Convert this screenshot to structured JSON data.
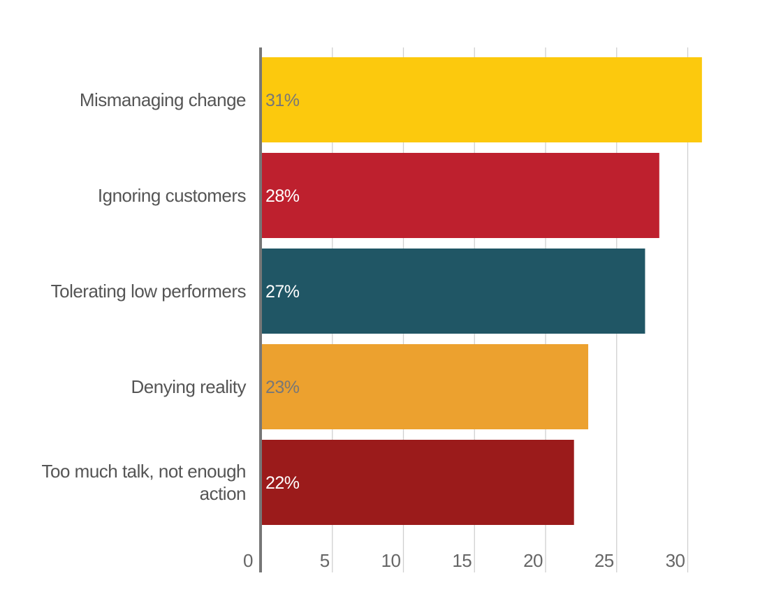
{
  "chart_data": {
    "type": "bar",
    "orientation": "horizontal",
    "categories": [
      [
        "Mismanaging change"
      ],
      [
        "Ignoring customers"
      ],
      [
        "Tolerating low performers"
      ],
      [
        "Denying reality"
      ],
      [
        "Too much talk, not enough",
        "action"
      ]
    ],
    "values": [
      31,
      28,
      27,
      23,
      22
    ],
    "data_labels": [
      "31%",
      "28%",
      "27%",
      "23%",
      "22%"
    ],
    "bar_colors": [
      "#fcc90d",
      "#be202e",
      "#205665",
      "#eca12f",
      "#9b1b1b"
    ],
    "label_colors": [
      "#777777",
      "#ffffff",
      "#ffffff",
      "#777777",
      "#ffffff"
    ],
    "x_ticks": [
      0,
      5,
      10,
      15,
      20,
      25,
      30
    ],
    "x_tick_labels": [
      "0",
      "5",
      "10",
      "15",
      "20",
      "25",
      "30"
    ],
    "xlim": [
      0,
      31
    ],
    "grid": true,
    "legend": "none",
    "title": "",
    "xlabel": "",
    "ylabel": ""
  }
}
